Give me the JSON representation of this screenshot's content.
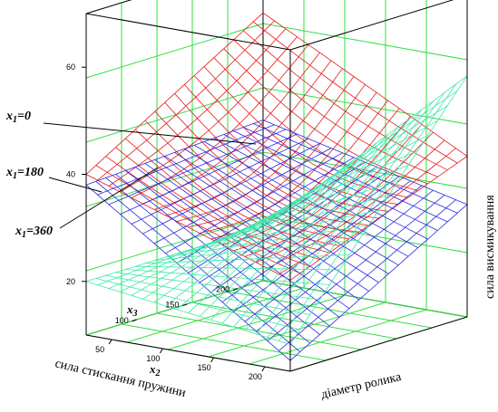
{
  "chart_data": {
    "type": "surface3d",
    "zlabel": "сила висмикування",
    "x2_label": "сила стискання пружини",
    "x3_label": "діаметр ролика",
    "x2_axis_symbol": "x",
    "x2_axis_sub": "2",
    "x3_axis_symbol": "x",
    "x3_axis_sub": "3",
    "z_ticks": [
      "60",
      "40",
      "20"
    ],
    "x2_ticks": [
      "50",
      "100",
      "150",
      "200"
    ],
    "x3_ticks": [
      "100",
      "150",
      "200"
    ],
    "zlim": [
      10,
      70
    ],
    "x2lim": [
      25,
      225
    ],
    "x3lim": [
      50,
      225
    ],
    "grid": true,
    "colors": {
      "frame": "#000000",
      "grid": "#33dd44",
      "x1_0": "#e61a1a",
      "x1_180": "#2a2ae0",
      "x1_360": "#3ee8a8"
    },
    "series": [
      {
        "name": "x1=0",
        "label_var": "x",
        "label_sub": "1",
        "label_val": "=0",
        "color": "#e61a1a",
        "corners": {
          "x2min_x3max": 60,
          "x2max_x3max": 40,
          "x2min_x3min": 40,
          "x2max_x3min": 27
        }
      },
      {
        "name": "x1=180",
        "label_var": "x",
        "label_sub": "1",
        "label_val": "=180",
        "color": "#2a2ae0",
        "corners": {
          "x2min_x3max": 40,
          "x2max_x3max": 31,
          "x2min_x3min": 38,
          "x2max_x3min": 12
        }
      },
      {
        "name": "x1=360",
        "label_var": "x",
        "label_sub": "1",
        "label_val": "=360",
        "color": "#3ee8a8",
        "corners": {
          "x2min_x3max": 20,
          "x2max_x3max": 55,
          "x2min_x3min": 20,
          "x2max_x3min": 15
        }
      }
    ]
  }
}
